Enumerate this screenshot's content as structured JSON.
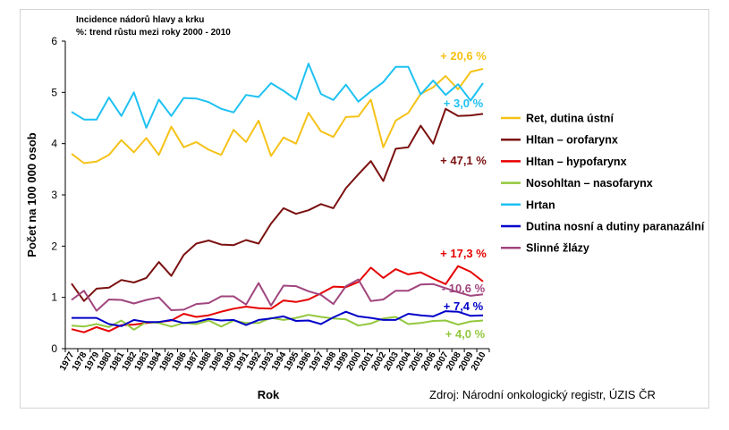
{
  "chart_data": {
    "type": "line",
    "title": "Incidence nádorů hlavy a krku",
    "subtitle": "%: trend růstu mezi roky 2000 - 2010",
    "xlabel": "Rok",
    "ylabel": "Počet na 100 000 osob",
    "ylim": [
      0,
      6
    ],
    "yticks": [
      "0",
      "1",
      "2",
      "3",
      "4",
      "5",
      "6"
    ],
    "grid": false,
    "legend_position": "right",
    "source": "Zdroj: Národní onkologický registr, ÚZIS ČR",
    "x": [
      "1977",
      "1978",
      "1979",
      "1980",
      "1981",
      "1982",
      "1983",
      "1984",
      "1985",
      "1986",
      "1987",
      "1988",
      "1989",
      "1990",
      "1991",
      "1992",
      "1993",
      "1994",
      "1995",
      "1996",
      "1997",
      "1998",
      "1999",
      "2000",
      "2001",
      "2002",
      "2003",
      "2004",
      "2005",
      "2006",
      "2007",
      "2008",
      "2009",
      "2010"
    ],
    "series": [
      {
        "name": "Ret, dutina ústní",
        "color": "#f5c218",
        "annotation": "+ 20,6 %",
        "values": [
          3.8,
          3.62,
          3.65,
          3.78,
          4.07,
          3.83,
          4.11,
          3.78,
          4.33,
          3.93,
          4.03,
          3.88,
          3.78,
          4.27,
          4.03,
          4.45,
          3.76,
          4.12,
          4.0,
          4.6,
          4.24,
          4.13,
          4.52,
          4.53,
          4.86,
          3.93,
          4.45,
          4.6,
          4.97,
          5.1,
          5.32,
          5.06,
          5.4,
          5.46
        ]
      },
      {
        "name": "Hltan – orofarynx",
        "color": "#7b1010",
        "annotation": "+ 47,1 %",
        "values": [
          1.27,
          0.93,
          1.17,
          1.19,
          1.34,
          1.29,
          1.38,
          1.69,
          1.42,
          1.83,
          2.05,
          2.11,
          2.03,
          2.02,
          2.12,
          2.05,
          2.44,
          2.74,
          2.63,
          2.7,
          2.82,
          2.74,
          3.13,
          3.4,
          3.66,
          3.27,
          3.9,
          3.93,
          4.35,
          4.0,
          4.68,
          4.54,
          4.55,
          4.58
        ]
      },
      {
        "name": "Hltan – hypofarynx",
        "color": "#e60000",
        "annotation": "+ 17,3 %",
        "values": [
          0.38,
          0.32,
          0.42,
          0.34,
          0.46,
          0.47,
          0.5,
          0.52,
          0.55,
          0.68,
          0.62,
          0.65,
          0.72,
          0.78,
          0.82,
          0.79,
          0.78,
          0.94,
          0.91,
          0.96,
          1.08,
          1.21,
          1.2,
          1.3,
          1.58,
          1.38,
          1.55,
          1.45,
          1.49,
          1.37,
          1.26,
          1.61,
          1.5,
          1.31
        ]
      },
      {
        "name": "Nosohltan – nasofarynx",
        "color": "#92c83e",
        "annotation": "+ 4,0 %",
        "values": [
          0.45,
          0.43,
          0.48,
          0.42,
          0.55,
          0.37,
          0.52,
          0.5,
          0.43,
          0.5,
          0.48,
          0.55,
          0.43,
          0.55,
          0.5,
          0.5,
          0.6,
          0.56,
          0.6,
          0.66,
          0.62,
          0.59,
          0.57,
          0.45,
          0.49,
          0.59,
          0.62,
          0.48,
          0.5,
          0.54,
          0.55,
          0.47,
          0.53,
          0.55
        ]
      },
      {
        "name": "Hrtan",
        "color": "#1ec1f2",
        "annotation": "+ 3,0 %",
        "values": [
          4.62,
          4.47,
          4.47,
          4.9,
          4.54,
          5.0,
          4.31,
          4.86,
          4.54,
          4.89,
          4.88,
          4.81,
          4.68,
          4.61,
          4.95,
          4.91,
          5.18,
          5.03,
          4.86,
          5.56,
          4.97,
          4.85,
          5.15,
          4.82,
          5.02,
          5.2,
          5.5,
          5.5,
          4.96,
          5.23,
          4.95,
          5.16,
          4.84,
          5.18
        ]
      },
      {
        "name": "Dutina nosní a dutiny paranazální",
        "color": "#0000c8",
        "annotation": "+ 7,4 %",
        "values": [
          0.6,
          0.6,
          0.6,
          0.48,
          0.44,
          0.56,
          0.52,
          0.52,
          0.56,
          0.5,
          0.52,
          0.58,
          0.55,
          0.56,
          0.46,
          0.56,
          0.59,
          0.63,
          0.54,
          0.55,
          0.48,
          0.61,
          0.72,
          0.63,
          0.6,
          0.56,
          0.56,
          0.68,
          0.65,
          0.63,
          0.73,
          0.72,
          0.64,
          0.65
        ]
      },
      {
        "name": "Slinné žlázy",
        "color": "#a0457e",
        "annotation": "- 10,6 %",
        "values": [
          0.95,
          1.13,
          0.74,
          0.96,
          0.95,
          0.88,
          0.95,
          1.0,
          0.75,
          0.76,
          0.87,
          0.89,
          1.02,
          1.02,
          0.86,
          1.28,
          0.84,
          1.23,
          1.22,
          1.12,
          1.05,
          0.87,
          1.22,
          1.35,
          0.93,
          0.96,
          1.13,
          1.13,
          1.25,
          1.26,
          1.18,
          1.1,
          1.03,
          1.06
        ]
      }
    ]
  }
}
